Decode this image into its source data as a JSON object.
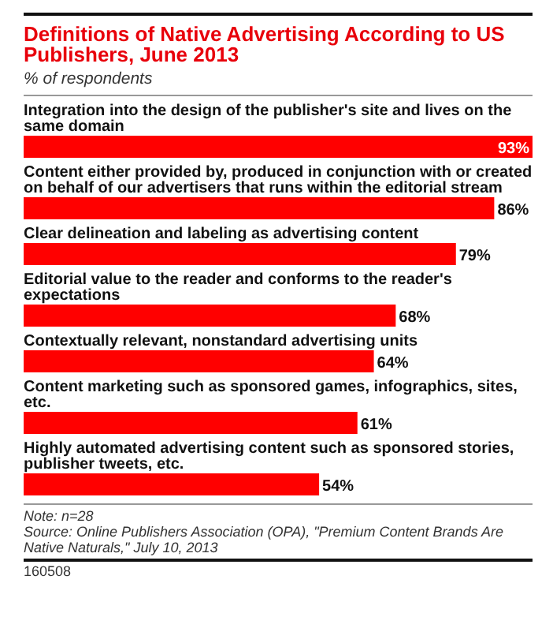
{
  "chart_data": {
    "type": "bar",
    "orientation": "horizontal",
    "title": "Definitions of Native Advertising According to US Publishers, June 2013",
    "subtitle": "% of respondents",
    "categories": [
      "Integration into the design of the publisher's site and lives on the same domain",
      "Content either provided by, produced in conjunction with or created on behalf of our advertisers that runs within the editorial stream",
      "Clear delineation and labeling as advertising content",
      "Editorial value to the reader and conforms to the reader's expectations",
      "Contextually relevant, nonstandard advertising units",
      "Content marketing such as sponsored games, infographics, sites, etc.",
      "Highly automated advertising content such as sponsored stories, publisher tweets, etc."
    ],
    "values": [
      93,
      86,
      79,
      68,
      64,
      61,
      54
    ],
    "value_labels": [
      "93%",
      "86%",
      "79%",
      "68%",
      "64%",
      "61%",
      "54%"
    ],
    "color": "#ff0000",
    "annotations": [
      "Note: n=28",
      "Source: Online Publishers Association (OPA), \"Premium Content Brands Are Native Naturals,\" July 10, 2013",
      "160508"
    ]
  }
}
